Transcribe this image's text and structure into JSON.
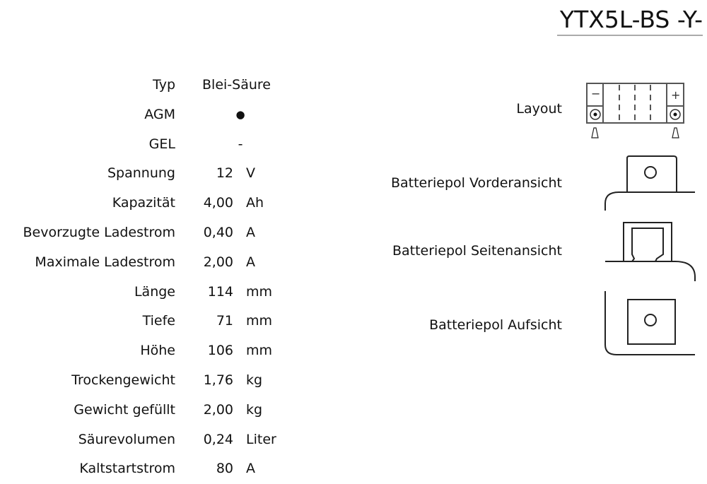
{
  "title": "YTX5L-BS -Y-",
  "specs": [
    {
      "label": "Typ",
      "value": "Blei-Säure",
      "unit": ""
    },
    {
      "label": "AGM",
      "value": "●",
      "unit": ""
    },
    {
      "label": "GEL",
      "value": "-",
      "unit": ""
    },
    {
      "label": "Spannung",
      "value": "12",
      "unit": "V"
    },
    {
      "label": "Kapazität",
      "value": "4,00",
      "unit": "Ah"
    },
    {
      "label": "Bevorzugte Ladestrom",
      "value": "0,40",
      "unit": "A"
    },
    {
      "label": "Maximale Ladestrom",
      "value": "2,00",
      "unit": "A"
    },
    {
      "label": "Länge",
      "value": "114",
      "unit": "mm"
    },
    {
      "label": "Tiefe",
      "value": "71",
      "unit": "mm"
    },
    {
      "label": "Höhe",
      "value": "106",
      "unit": "mm"
    },
    {
      "label": "Trockengewicht",
      "value": "1,76",
      "unit": "kg"
    },
    {
      "label": "Gewicht gefüllt",
      "value": "2,00",
      "unit": "kg"
    },
    {
      "label": "Säurevolumen",
      "value": "0,24",
      "unit": "Liter"
    },
    {
      "label": "Kaltstartstrom",
      "value": "80",
      "unit": "A"
    }
  ],
  "diagrams": {
    "layout": "Layout",
    "front": "Batteriepol Vorderansicht",
    "side": "Batteriepol Seitenansicht",
    "top": "Batteriepol Aufsicht",
    "minus": "−",
    "plus": "+"
  }
}
